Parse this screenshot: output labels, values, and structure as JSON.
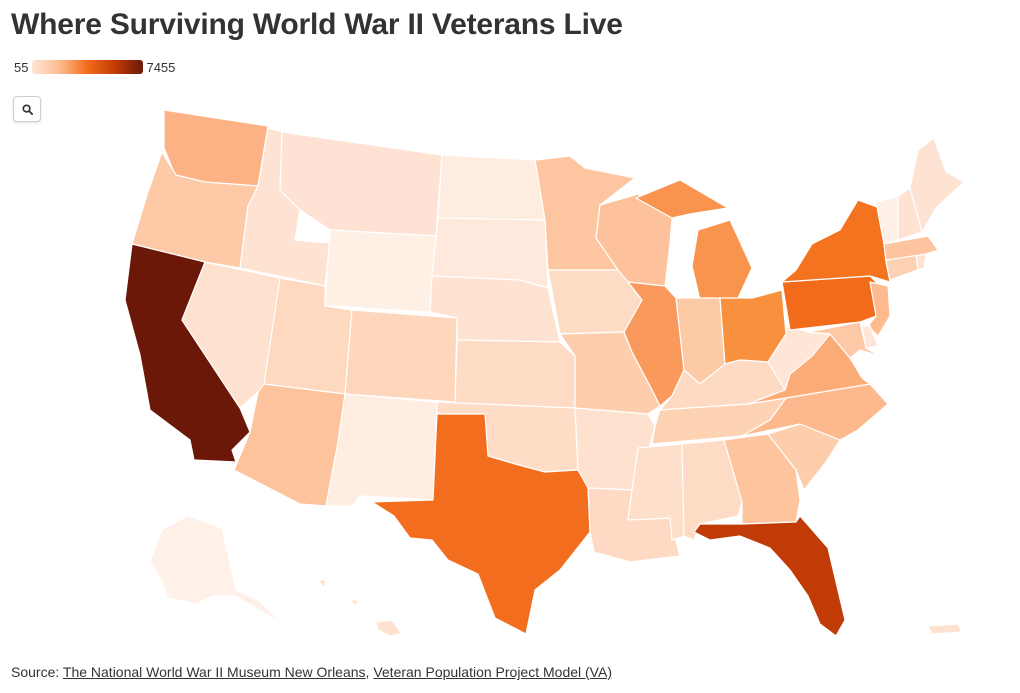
{
  "title": "Where Surviving World War II Veterans Live",
  "legend": {
    "min_label": "55",
    "max_label": "7455",
    "colors": [
      "#fee6d5",
      "#fdbb8f",
      "#f26b1a",
      "#c13b06",
      "#6b1808"
    ]
  },
  "search": {
    "icon": "search-icon"
  },
  "source": {
    "prefix": "Source: ",
    "separator": ", ",
    "links": [
      {
        "label": "The National World War II Museum New Orleans"
      },
      {
        "label": "Veteran Population Project Model (VA)"
      }
    ]
  },
  "map_data": {
    "metric": "Surviving World War II veterans",
    "range": [
      55,
      7455
    ],
    "states": [
      {
        "id": "WA",
        "color": "#fdb285"
      },
      {
        "id": "OR",
        "color": "#fdc9a6"
      },
      {
        "id": "CA",
        "color": "#6b1808"
      },
      {
        "id": "ID",
        "color": "#fee3d3"
      },
      {
        "id": "NV",
        "color": "#fee1ce"
      },
      {
        "id": "MT",
        "color": "#fee3d4"
      },
      {
        "id": "WY",
        "color": "#fff0e5"
      },
      {
        "id": "UT",
        "color": "#fed8bf"
      },
      {
        "id": "AZ",
        "color": "#fdc39d"
      },
      {
        "id": "CO",
        "color": "#fed6bb"
      },
      {
        "id": "NM",
        "color": "#ffede1"
      },
      {
        "id": "ND",
        "color": "#ffece0"
      },
      {
        "id": "SD",
        "color": "#ffe9dc"
      },
      {
        "id": "NE",
        "color": "#fee3d2"
      },
      {
        "id": "KS",
        "color": "#fedbc5"
      },
      {
        "id": "OK",
        "color": "#fedcc6"
      },
      {
        "id": "TX",
        "color": "#f26d1e"
      },
      {
        "id": "MN",
        "color": "#fdc6a0"
      },
      {
        "id": "IA",
        "color": "#fedbc5"
      },
      {
        "id": "MO",
        "color": "#fdcdac"
      },
      {
        "id": "AR",
        "color": "#fee2cf"
      },
      {
        "id": "LA",
        "color": "#fedac4"
      },
      {
        "id": "WI",
        "color": "#fdc29b"
      },
      {
        "id": "IL",
        "color": "#f99a5c"
      },
      {
        "id": "MI",
        "color": "#f9944f"
      },
      {
        "id": "IN",
        "color": "#fdcaa6"
      },
      {
        "id": "OH",
        "color": "#f8913e"
      },
      {
        "id": "KY",
        "color": "#fedac3"
      },
      {
        "id": "TN",
        "color": "#fdd3b4"
      },
      {
        "id": "MS",
        "color": "#fedfca"
      },
      {
        "id": "AL",
        "color": "#fedbc5"
      },
      {
        "id": "GA",
        "color": "#fdc49e"
      },
      {
        "id": "FL",
        "color": "#c13b06"
      },
      {
        "id": "SC",
        "color": "#fdcdac"
      },
      {
        "id": "NC",
        "color": "#fdb88e"
      },
      {
        "id": "VA",
        "color": "#fbab76"
      },
      {
        "id": "WV",
        "color": "#fee5d5"
      },
      {
        "id": "PA",
        "color": "#f26b1a"
      },
      {
        "id": "NY",
        "color": "#f4731f"
      },
      {
        "id": "NJ",
        "color": "#fdbb8f"
      },
      {
        "id": "DE",
        "color": "#fee5d5"
      },
      {
        "id": "MD",
        "color": "#fdc8a5"
      },
      {
        "id": "CT",
        "color": "#fdd2b4"
      },
      {
        "id": "RI",
        "color": "#fee3d2"
      },
      {
        "id": "MA",
        "color": "#fdc49f"
      },
      {
        "id": "VT",
        "color": "#fff0e7"
      },
      {
        "id": "NH",
        "color": "#fee3d3"
      },
      {
        "id": "ME",
        "color": "#fee3d3"
      },
      {
        "id": "AK",
        "color": "#fff0e8"
      },
      {
        "id": "HI",
        "color": "#fee2cf"
      },
      {
        "id": "PR",
        "color": "#fee2cf"
      }
    ]
  }
}
